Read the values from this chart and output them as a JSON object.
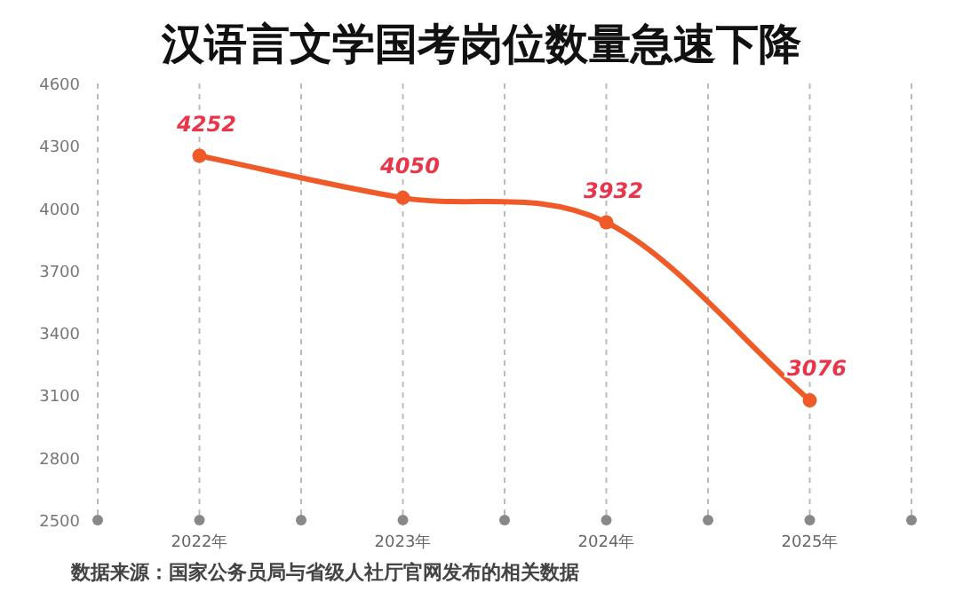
{
  "chart_data": {
    "type": "line",
    "title": "汉语言文学国考岗位数量急速下降",
    "categories": [
      "2022年",
      "2023年",
      "2024年",
      "2025年"
    ],
    "series": [
      {
        "color": "#ef5a28",
        "values": [
          4252,
          4050,
          3932,
          3076
        ]
      }
    ],
    "ylim": [
      2500,
      4600
    ],
    "yticks": [
      2500,
      2800,
      3100,
      3400,
      3700,
      4000,
      4300,
      4600
    ],
    "grid": "x",
    "marker": "circle",
    "line_style": "solid",
    "data_labels": true,
    "annotations": [
      "数据来源：国家公务员局与省级人社厅官网发布的相关数据"
    ]
  }
}
